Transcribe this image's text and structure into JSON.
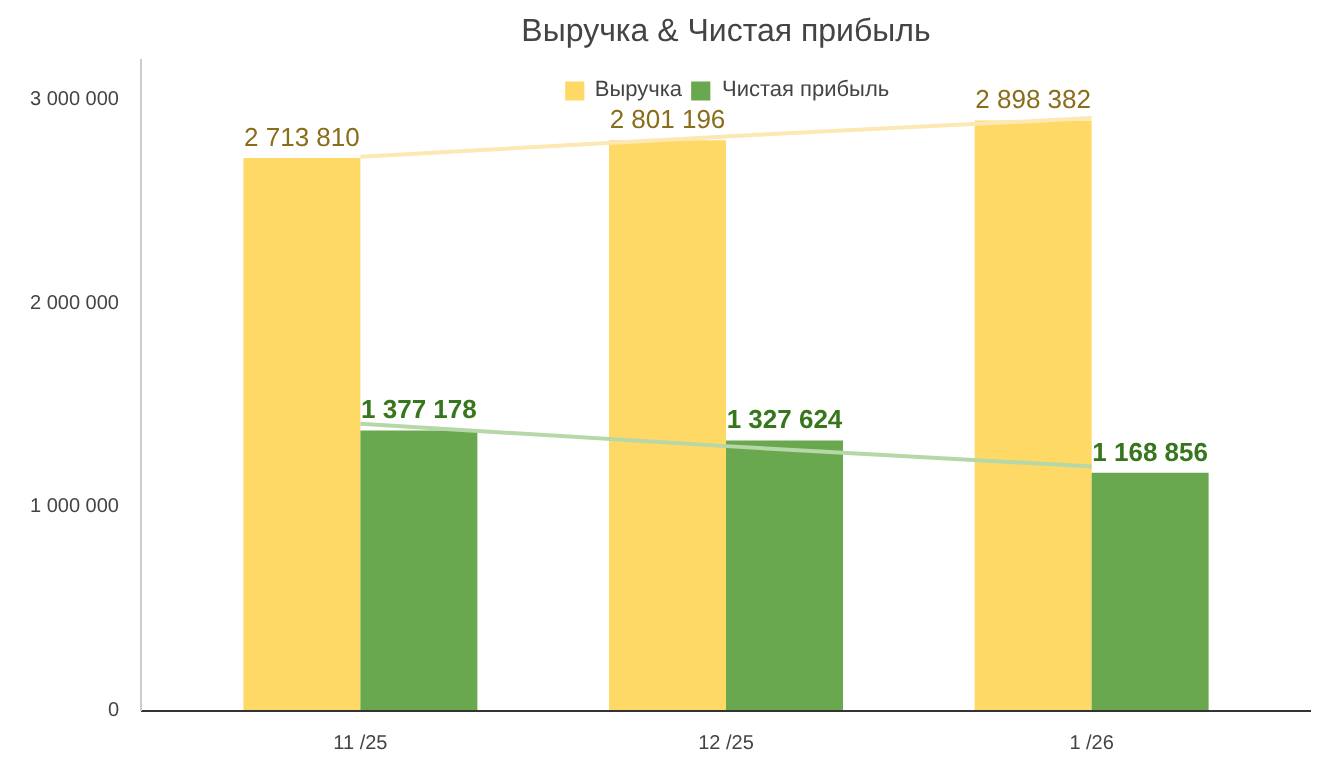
{
  "chart_data": {
    "type": "bar",
    "title": "Выручка & Чистая прибыль",
    "categories": [
      "11 /25",
      "12 /25",
      "1 /26"
    ],
    "series": [
      {
        "name": "Выручка",
        "color": "#ffd966",
        "values": [
          2713810,
          2801196,
          2898382
        ],
        "value_labels": [
          "2 713 810",
          "2 801 196",
          "2 898 382"
        ]
      },
      {
        "name": "Чистая прибыль",
        "color": "#6aa84f",
        "values": [
          1377178,
          1327624,
          1168856
        ],
        "value_labels": [
          "1 377 178",
          "1 327 624",
          "1 168 856"
        ]
      },
      {
        "type": "line",
        "color": "#fce8b2",
        "values": [
          2720000,
          2820000,
          2910000
        ]
      },
      {
        "type": "line",
        "color": "#b6d7a8",
        "values": [
          1410000,
          1300000,
          1200000
        ]
      }
    ],
    "ylim": [
      0,
      3200000
    ],
    "yticks": [
      0,
      {
        "value": 1000000,
        "label": "1 000 000"
      },
      {
        "value": 2000000,
        "label": "2 000 000"
      },
      {
        "value": 3000000,
        "label": "3 000 000"
      }
    ],
    "grid": false,
    "legend": "top"
  }
}
